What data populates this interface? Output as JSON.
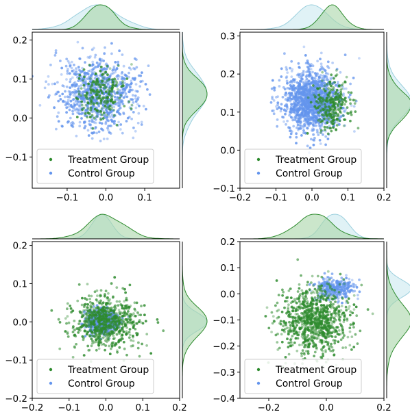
{
  "chart_data": [
    {
      "type": "scatter",
      "xlim": [
        -0.19,
        0.19
      ],
      "ylim": [
        -0.18,
        0.22
      ],
      "xticks": [
        "−0.1",
        "0.0",
        "0.1"
      ],
      "xtick_values": [
        -0.1,
        0.0,
        0.1
      ],
      "yticks": [
        "−0.1",
        "0.0",
        "0.1",
        "0.2"
      ],
      "ytick_values": [
        -0.1,
        0.0,
        0.1,
        0.2
      ],
      "marginals": true,
      "legend_position": "lower-left",
      "series": [
        {
          "name": "Treatment Group",
          "color": "#2e8b2e",
          "center": [
            -0.015,
            0.06
          ],
          "spread": [
            0.03,
            0.032
          ],
          "count": 220
        },
        {
          "name": "Control Group",
          "color": "#6495ed",
          "center": [
            -0.02,
            0.06
          ],
          "spread": [
            0.05,
            0.045
          ],
          "count": 900
        }
      ]
    },
    {
      "type": "scatter",
      "xlim": [
        -0.2,
        0.2
      ],
      "ylim": [
        -0.1,
        0.31
      ],
      "xticks": [
        "−0.2",
        "−0.1",
        "0.0",
        "0.1",
        "0.2"
      ],
      "xtick_values": [
        -0.2,
        -0.1,
        0.0,
        0.1,
        0.2
      ],
      "yticks": [
        "−0.1",
        "0.0",
        "0.1",
        "0.2",
        "0.3"
      ],
      "ytick_values": [
        -0.1,
        0.0,
        0.1,
        0.2,
        0.3
      ],
      "marginals": true,
      "legend_position": "lower-left",
      "series": [
        {
          "name": "Treatment Group",
          "color": "#2e8b2e",
          "center": [
            0.055,
            0.12
          ],
          "spread": [
            0.025,
            0.03
          ],
          "count": 260
        },
        {
          "name": "Control Group",
          "color": "#6495ed",
          "center": [
            0.0,
            0.13
          ],
          "spread": [
            0.04,
            0.04
          ],
          "count": 1400
        }
      ]
    },
    {
      "type": "scatter",
      "xlim": [
        -0.2,
        0.2
      ],
      "ylim": [
        -0.2,
        0.21
      ],
      "xticks": [
        "−0.2",
        "−0.1",
        "0.0",
        "0.1",
        "0.2"
      ],
      "xtick_values": [
        -0.2,
        -0.1,
        0.0,
        0.1,
        0.2
      ],
      "yticks": [
        "−0.2",
        "−0.1",
        "0.0",
        "0.1",
        "0.2"
      ],
      "ytick_values": [
        -0.2,
        -0.1,
        0.0,
        0.1,
        0.2
      ],
      "marginals": true,
      "legend_position": "lower-left",
      "series": [
        {
          "name": "Treatment Group",
          "color": "#2e8b2e",
          "center": [
            0.0,
            0.0
          ],
          "spread": [
            0.045,
            0.035
          ],
          "count": 700
        },
        {
          "name": "Control Group",
          "color": "#6495ed",
          "center": [
            -0.01,
            0.0
          ],
          "spread": [
            0.02,
            0.015
          ],
          "count": 800
        }
      ]
    },
    {
      "type": "scatter",
      "xlim": [
        -0.3,
        0.2
      ],
      "ylim": [
        -0.4,
        0.2
      ],
      "xticks": [
        "−0.2",
        "0.0",
        "0.2"
      ],
      "xtick_values": [
        -0.2,
        0.0,
        0.2
      ],
      "yticks": [
        "−0.4",
        "−0.3",
        "−0.2",
        "−0.1",
        "0.0",
        "0.1",
        "0.2"
      ],
      "ytick_values": [
        -0.4,
        -0.3,
        -0.2,
        -0.1,
        0.0,
        0.1,
        0.2
      ],
      "marginals": true,
      "legend_position": "lower-left",
      "series": [
        {
          "name": "Treatment Group",
          "color": "#2e8b2e",
          "center": [
            -0.04,
            -0.1
          ],
          "spread": [
            0.06,
            0.065
          ],
          "count": 900
        },
        {
          "name": "Control Group",
          "color": "#6495ed",
          "center": [
            0.03,
            0.02
          ],
          "spread": [
            0.035,
            0.02
          ],
          "count": 300
        }
      ]
    }
  ],
  "colors": {
    "treatment": "#2e8b2e",
    "control": "#6495ed",
    "treatment_fill": "#a8d5a8",
    "control_fill": "#cce9f0"
  }
}
